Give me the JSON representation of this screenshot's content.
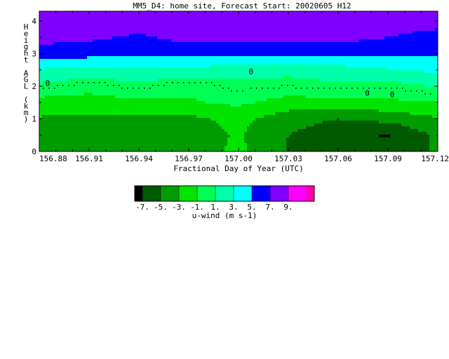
{
  "chart_data": {
    "type": "heatmap",
    "title": "MM5_D4: home site,  Forecast Start: 20020605 H12",
    "xlabel": "Fractional Day of Year (UTC)",
    "ylabel": "Height AGL (km)",
    "x_ticks": [
      "156.88",
      "156.91",
      "156.94",
      "156.97",
      "157.00",
      "157.03",
      "157.06",
      "157.09",
      "157.12"
    ],
    "y_ticks": [
      "0",
      "1",
      "2",
      "3",
      "4"
    ],
    "xlim": [
      156.88,
      157.12
    ],
    "ylim": [
      0,
      4.3
    ],
    "contour_label": "0",
    "colorbar": {
      "label": "u-wind (m s-1)",
      "tick_labels": [
        "-7.",
        "-5.",
        "-3.",
        "-1.",
        "1.",
        "3.",
        "5.",
        "7.",
        "9."
      ],
      "colors": [
        "#000000",
        "#005a00",
        "#009c00",
        "#00e400",
        "#00ff55",
        "#00ffaa",
        "#00ffff",
        "#0000ff",
        "#7f00ff",
        "#ff00ff",
        "#ff00aa"
      ]
    },
    "x": [
      156.88,
      156.91,
      156.94,
      156.97,
      157.0,
      157.03,
      157.06,
      157.09,
      157.12
    ],
    "y": [
      0,
      0.5,
      1,
      1.5,
      2,
      2.5,
      3,
      3.5,
      4,
      4.3
    ],
    "z": [
      [
        -4.5,
        -4.5,
        -4.5,
        -4.3,
        -2.5,
        -5.2,
        -6.2,
        -5.8,
        -4.8
      ],
      [
        -4.2,
        -4.2,
        -4.2,
        -4.0,
        -2.8,
        -5.0,
        -6.4,
        -7.2,
        -4.6
      ],
      [
        -3.2,
        -3.4,
        -3.6,
        -3.5,
        -2.4,
        -4.2,
        -5.0,
        -4.4,
        -3.2
      ],
      [
        -1.8,
        -1.8,
        -1.4,
        -1.2,
        -0.6,
        -1.8,
        -1.6,
        -1.4,
        -1.0
      ],
      [
        0.6,
        -0.4,
        0.5,
        -0.6,
        0.4,
        0.2,
        0.6,
        0.2,
        1.2
      ],
      [
        2.8,
        2.4,
        2.5,
        2.4,
        1.8,
        1.6,
        2.0,
        2.8,
        3.4
      ],
      [
        6.2,
        5.8,
        5.4,
        5.6,
        5.6,
        5.8,
        5.8,
        5.6,
        5.4
      ],
      [
        7.6,
        7.4,
        6.6,
        7.8,
        7.6,
        7.5,
        7.6,
        7.0,
        6.0
      ],
      [
        8.2,
        8.3,
        8.4,
        8.6,
        8.5,
        8.4,
        8.3,
        8.2,
        8.0
      ],
      [
        8.3,
        8.5,
        8.6,
        9.0,
        8.6,
        8.4,
        8.3,
        8.2,
        8.0
      ]
    ]
  }
}
